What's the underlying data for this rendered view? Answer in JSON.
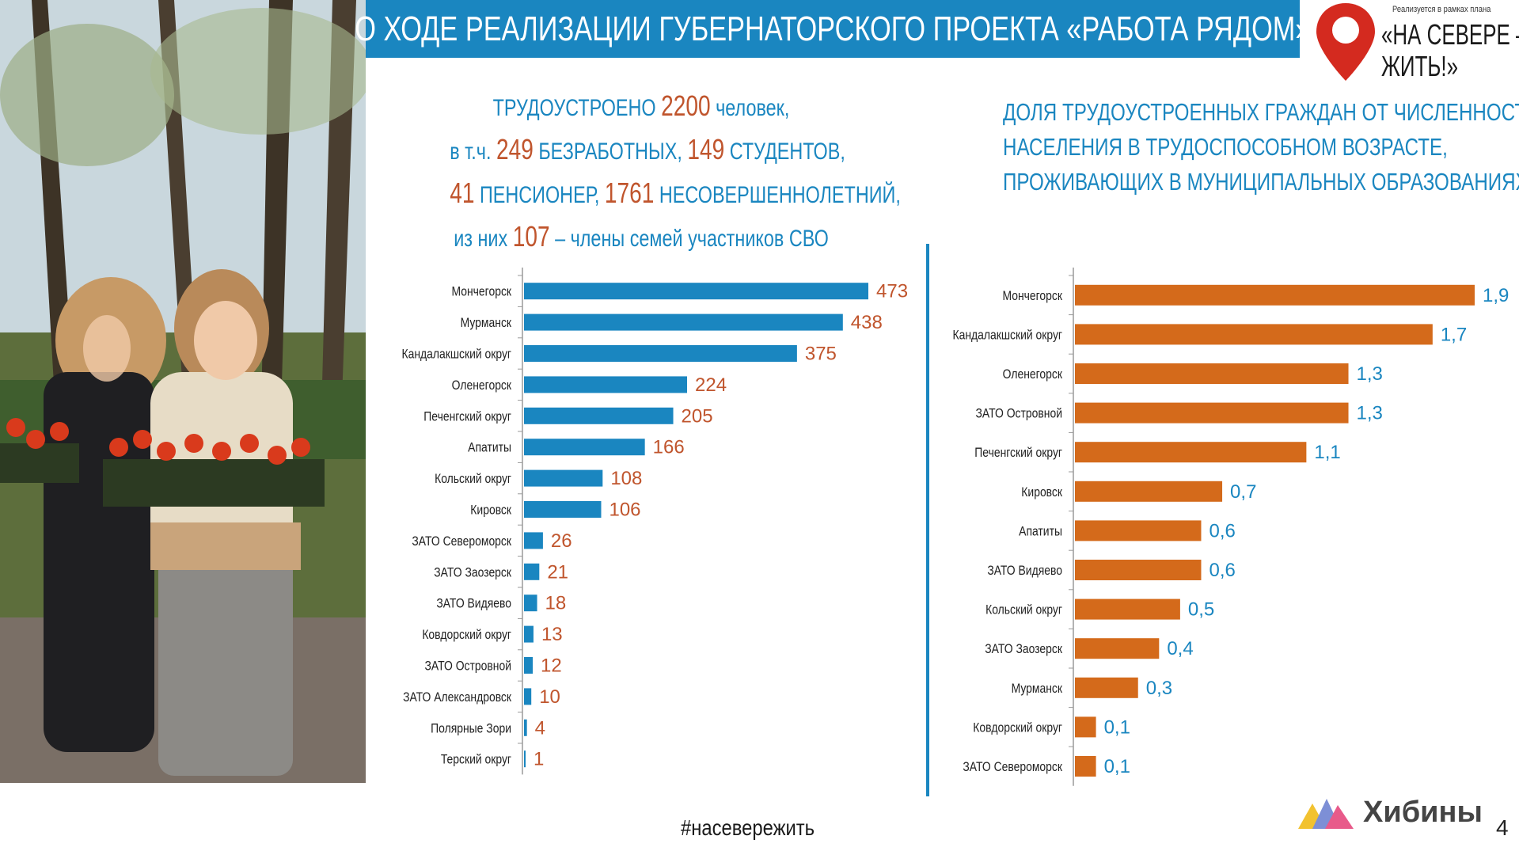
{
  "header": {
    "title": "О ХОДЕ РЕАЛИЗАЦИИ ГУБЕРНАТОРСКОГО ПРОЕКТА «РАБОТА РЯДОМ»"
  },
  "brand": {
    "tagline": "Реализуется в рамках плана",
    "name": "«НА СЕВЕРЕ –\nЖИТЬ!»"
  },
  "summary": {
    "l1_pre": "ТРУДОУСТРОЕНО ",
    "total": "2200",
    "l1_post": " человек,",
    "l2_pre": "в т.ч. ",
    "unemployed": "249",
    "l2_mid": "  БЕЗРАБОТНЫХ, ",
    "students": "149",
    "l2_post": " СТУДЕНТОВ,",
    "pensioners": "41",
    "l3_mid": " ПЕНСИОНЕР, ",
    "minors": "1761",
    "l3_post": " НЕСОВЕРШЕННОЛЕТНИЙ,",
    "l4_pre": "из них  ",
    "svo": "107",
    "l4_post": "  – члены семей участников СВО"
  },
  "share_title": {
    "l1": "ДОЛЯ ТРУДОУСТРОЕННЫХ ГРАЖДАН ОТ ЧИСЛЕННОСТИ",
    "l2": "НАСЕЛЕНИЯ В ТРУДОСПОСОБНОМ ВОЗРАСТЕ,",
    "l3": "ПРОЖИВАЮЩИХ В МУНИЦИПАЛЬНЫХ ОБРАЗОВАНИЯХ, %"
  },
  "chart_data": [
    {
      "type": "bar",
      "orientation": "horizontal",
      "title": "",
      "xlabel": "",
      "ylabel": "",
      "bar_color": "#1a86c0",
      "label_color": "#c0552d",
      "categories": [
        "Мончегорск",
        "Мурманск",
        "Кандалакшский округ",
        "Оленегорск",
        "Печенгский округ",
        "Апатиты",
        "Кольский округ",
        "Кировск",
        "ЗАТО Североморск",
        "ЗАТО Заозерск",
        "ЗАТО Видяево",
        "Ковдорский округ",
        "ЗАТО Островной",
        "ЗАТО Александровск",
        "Полярные Зори",
        "Терский округ"
      ],
      "values": [
        473,
        438,
        375,
        224,
        205,
        166,
        108,
        106,
        26,
        21,
        18,
        13,
        12,
        10,
        4,
        1
      ],
      "value_labels": [
        "473",
        "438",
        "375",
        "224",
        "205",
        "166",
        "108",
        "106",
        "26",
        "21",
        "18",
        "13",
        "12",
        "10",
        "4",
        "1"
      ]
    },
    {
      "type": "bar",
      "orientation": "horizontal",
      "title": "",
      "xlabel": "",
      "ylabel": "",
      "bar_color": "#d46a1b",
      "label_color": "#1a86c0",
      "categories": [
        "Мончегорск",
        "Кандалакшский округ",
        "Оленегорск",
        "ЗАТО Островной",
        "Печенгский округ",
        "Кировск",
        "Апатиты",
        "ЗАТО Видяево",
        "Кольский округ",
        "ЗАТО Заозерск",
        "Мурманск",
        "Ковдорский округ",
        "ЗАТО Североморск"
      ],
      "values": [
        1.9,
        1.7,
        1.3,
        1.3,
        1.1,
        0.7,
        0.6,
        0.6,
        0.5,
        0.4,
        0.3,
        0.1,
        0.1
      ],
      "value_labels": [
        "1,9",
        "1,7",
        "1,3",
        "1,3",
        "1,1",
        "0,7",
        "0,6",
        "0,6",
        "0,5",
        "0,4",
        "0,3",
        "0,1",
        "0,1"
      ]
    }
  ],
  "footer": {
    "hashtag": "#насевережить",
    "logo_name": "Хибины",
    "page": "4"
  }
}
